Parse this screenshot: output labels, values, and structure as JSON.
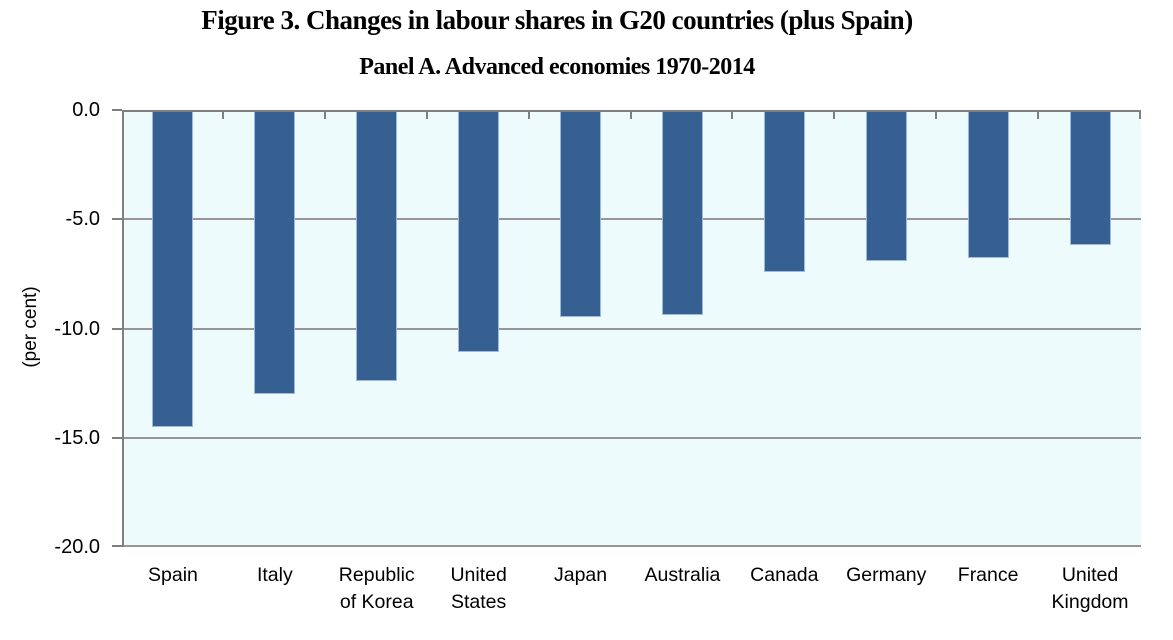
{
  "figure": {
    "title": "Figure 3. Changes in labour shares in G20 countries (plus Spain)",
    "subtitle": "Panel A. Advanced economies 1970-2014"
  },
  "chart_data": {
    "type": "bar",
    "title": "Figure 3. Changes in labour shares in G20 countries (plus Spain)",
    "subtitle": "Panel A. Advanced economies 1970-2014",
    "categories": [
      "Spain",
      "Italy",
      "Republic\nof Korea",
      "United\nStates",
      "Japan",
      "Australia",
      "Canada",
      "Germany",
      "France",
      "United\nKingdom"
    ],
    "values": [
      -14.4,
      -12.9,
      -12.3,
      -11.0,
      -9.4,
      -9.3,
      -7.3,
      -6.8,
      -6.7,
      -6.1
    ],
    "xlabel": "",
    "ylabel": "(per cent)",
    "ylim": [
      -20,
      0
    ],
    "yticks": [
      0,
      -5,
      -10,
      -15,
      -20
    ],
    "ytick_labels": [
      "0.0",
      "-5.0",
      "-10.0",
      "-15.0",
      "-20.0"
    ],
    "grid": true,
    "legend": "none",
    "colors": {
      "bar_fill": "#366092",
      "bar_border": "#9fb9d8",
      "plot_bg": "#edfbfc",
      "gridline": "#969696",
      "axis": "#7f7f7f",
      "text": "#000000"
    }
  }
}
